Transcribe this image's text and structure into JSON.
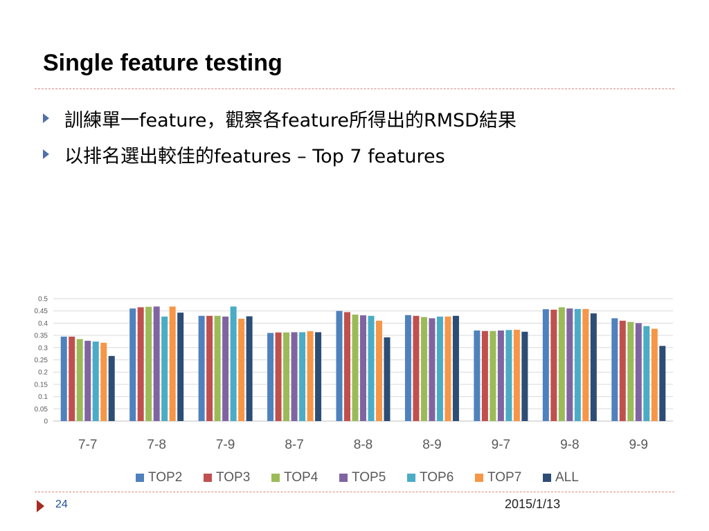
{
  "slide": {
    "title": "Single feature testing",
    "bullets": [
      "訓練單一feature，觀察各feature所得出的RMSD結果",
      "以排名選出較佳的features – Top 7 features"
    ],
    "page_number": "24",
    "date": "2015/1/13",
    "bullet_color": "#4F6FA8",
    "footer_arrow_color": "#A62B20"
  },
  "chart_data": {
    "type": "bar",
    "title": "",
    "xlabel": "",
    "ylabel": "",
    "ylim": [
      0,
      0.5
    ],
    "yticks": [
      "0",
      "0.05",
      "0.1",
      "0.15",
      "0.2",
      "0.25",
      "0.3",
      "0.35",
      "0.4",
      "0.45",
      "0.5"
    ],
    "grid": true,
    "legend_position": "bottom",
    "categories": [
      "7-7",
      "7-8",
      "7-9",
      "8-7",
      "8-8",
      "8-9",
      "9-7",
      "9-8",
      "9-9"
    ],
    "series": [
      {
        "name": "TOP2",
        "color": "#4F81BD",
        "values": [
          0.345,
          0.46,
          0.43,
          0.36,
          0.45,
          0.433,
          0.37,
          0.457,
          0.42
        ]
      },
      {
        "name": "TOP3",
        "color": "#C0504D",
        "values": [
          0.345,
          0.465,
          0.43,
          0.362,
          0.445,
          0.43,
          0.368,
          0.455,
          0.41
        ]
      },
      {
        "name": "TOP4",
        "color": "#9BBB59",
        "values": [
          0.335,
          0.467,
          0.43,
          0.362,
          0.435,
          0.425,
          0.368,
          0.465,
          0.405
        ]
      },
      {
        "name": "TOP5",
        "color": "#8064A2",
        "values": [
          0.328,
          0.468,
          0.427,
          0.363,
          0.432,
          0.42,
          0.37,
          0.46,
          0.4
        ]
      },
      {
        "name": "TOP6",
        "color": "#4BACC6",
        "values": [
          0.325,
          0.427,
          0.468,
          0.363,
          0.43,
          0.427,
          0.372,
          0.458,
          0.388
        ]
      },
      {
        "name": "TOP7",
        "color": "#F79646",
        "values": [
          0.32,
          0.468,
          0.418,
          0.367,
          0.41,
          0.427,
          0.373,
          0.458,
          0.377
        ]
      },
      {
        "name": "ALL",
        "color": "#2C4D75",
        "values": [
          0.266,
          0.443,
          0.428,
          0.363,
          0.342,
          0.43,
          0.365,
          0.44,
          0.307
        ]
      }
    ]
  }
}
